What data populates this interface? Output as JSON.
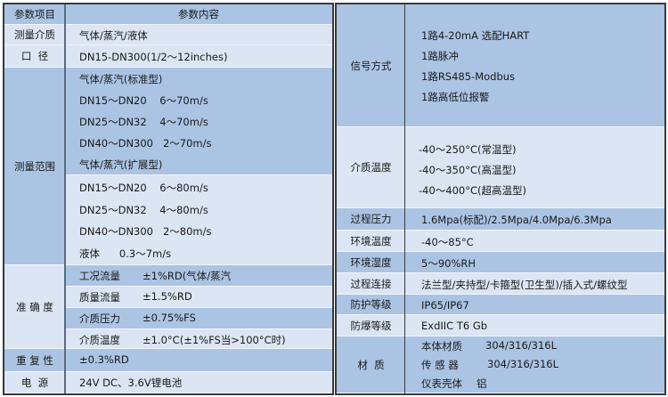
{
  "colors": {
    "header_row": "#abc4e4",
    "alt_row": "#dbe5f3",
    "border": "#3a3a3a"
  },
  "left_table": {
    "header": {
      "item": "参数项目",
      "content": "参数内容"
    },
    "medium": {
      "label": "测量介质",
      "value": "气体/蒸汽/液体"
    },
    "diameter": {
      "label": "口  径",
      "value": "DN15-DN300(1/2～12inches)"
    },
    "range": {
      "label": "测量范围",
      "lines_standard": [
        "气体/蒸汽(标准型)",
        "DN15～DN20    6～70m/s",
        "DN25～DN32    4～70m/s",
        "DN40～DN300   2～70m/s",
        "气体/蒸汽(扩展型)"
      ],
      "lines_extended": [
        "DN15～DN20    6～80m/s",
        "DN25～DN32    4～80m/s",
        "DN40～DN300   2～80m/s",
        "液体      0.3～7m/s"
      ]
    },
    "accuracy": {
      "label": "准 确 度",
      "rows": [
        {
          "name": "工况流量",
          "value": "±1%RD(气体/蒸汽"
        },
        {
          "name": "质量流量",
          "value": "±1.5%RD"
        },
        {
          "name": "介质压力",
          "value": "±0.75%FS"
        },
        {
          "name": "介质温度",
          "value": "±1.0°C(±1%FS当>100°C时)"
        }
      ]
    },
    "repeatability": {
      "label": "重 复 性",
      "value": "±0.3%RD"
    },
    "power": {
      "label": "电  源",
      "value": "24V DC、3.6V锂电池"
    }
  },
  "right_table": {
    "signal": {
      "label": "信号方式",
      "lines": [
        "1路4-20mA 选配HART",
        "1路脉冲",
        "1路RS485-Modbus",
        "1路高低位报警"
      ]
    },
    "medium_temp": {
      "label": "介质温度",
      "lines": [
        "-40～250°C(常温型)",
        "-40～350°C(高温型)",
        "-40～400°C(超高温型)"
      ]
    },
    "rows": [
      {
        "label": "过程压力",
        "value": "1.6Mpa(标配)/2.5Mpa/4.0Mpa/6.3Mpa"
      },
      {
        "label": "环境温度",
        "value": "-40～85°C"
      },
      {
        "label": "环境湿度",
        "value": "5～90%RH"
      },
      {
        "label": "过程连接",
        "value": "法兰型/夹持型/卡箍型(卫生型)/插入式/螺纹型"
      },
      {
        "label": "防护等级",
        "value": "IP65/IP67"
      },
      {
        "label": "防爆等级",
        "value": "ExdIIC T6 Gb"
      }
    ],
    "material": {
      "label": "材  质",
      "rows": [
        {
          "name": "本体材质",
          "value": "304/316/316L"
        },
        {
          "name": "传 感 器",
          "value": "304/316/316L"
        },
        {
          "name": "仪表壳体",
          "value": "铝"
        }
      ]
    }
  }
}
